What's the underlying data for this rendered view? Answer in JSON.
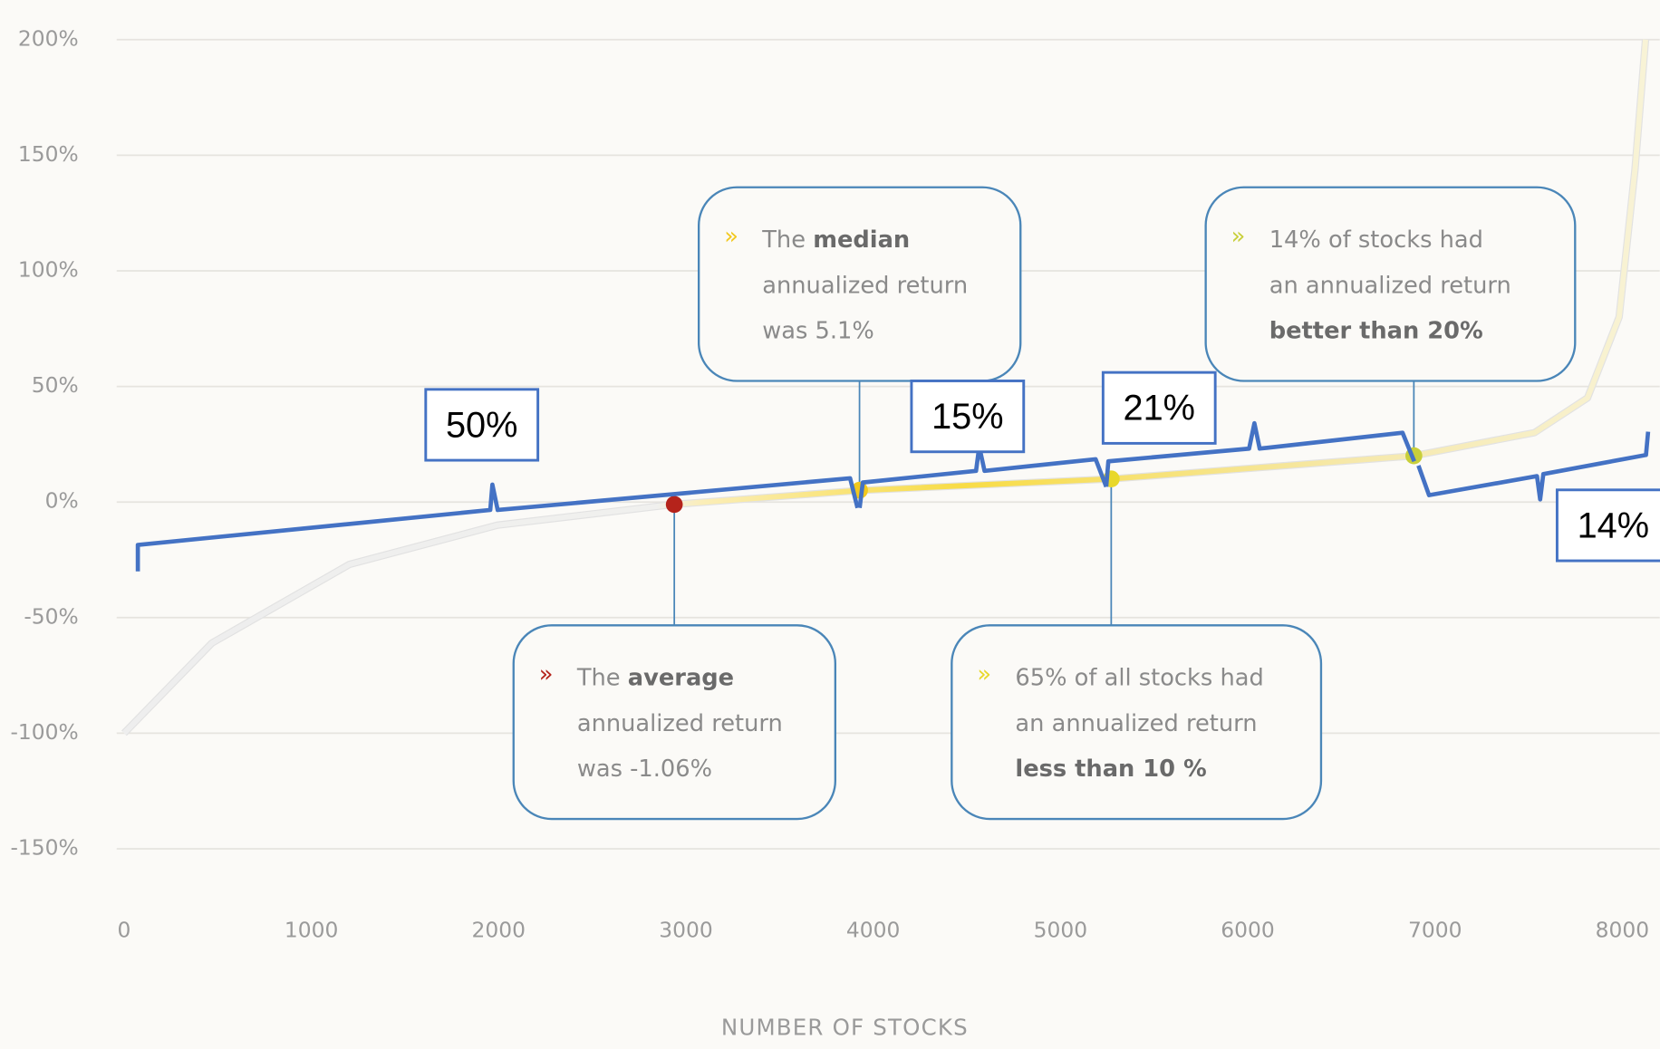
{
  "chart_data": {
    "type": "line",
    "x_label": "NUMBER OF STOCKS",
    "xlim": [
      0,
      8200
    ],
    "xticks": [
      0,
      1000,
      2000,
      3000,
      4000,
      5000,
      6000,
      7000,
      8000
    ],
    "ylim": [
      -165,
      208
    ],
    "yticks": [
      {
        "value": -150,
        "label": "-150%"
      },
      {
        "value": -100,
        "label": "-100%"
      },
      {
        "value": -50,
        "label": "-50%"
      },
      {
        "value": 0,
        "label": "0%"
      },
      {
        "value": 50,
        "label": "50%"
      },
      {
        "value": 100,
        "label": "100%"
      },
      {
        "value": 150,
        "label": "150%"
      },
      {
        "value": 200,
        "label": "200%"
      }
    ],
    "grid": true,
    "series": [
      {
        "color": "#f5e6a0",
        "x": [
          0,
          469,
          1203,
          1994,
          2938,
          3927,
          5271,
          6887,
          7531,
          7814,
          7983,
          8068,
          8124
        ],
        "values": [
          -100,
          -61,
          -27,
          -10,
          -1,
          5,
          10,
          20,
          30,
          45,
          80,
          144,
          200
        ]
      }
    ],
    "highlights": [
      {
        "x": 2938,
        "y": -1.06,
        "color": "#b5231b",
        "bullet": "»",
        "lines": [
          [
            {
              "text": "The"
            },
            {
              "text": "average",
              "bold": true
            }
          ],
          [
            {
              "text": "annualized return"
            }
          ],
          [
            {
              "text": "was -1.06%"
            }
          ]
        ]
      },
      {
        "x": 3927,
        "y": 5.1,
        "color": "#f2c81e",
        "bullet": "»",
        "lines": [
          [
            {
              "text": "The"
            },
            {
              "text": "median",
              "bold": true
            }
          ],
          [
            {
              "text": "annualized return"
            }
          ],
          [
            {
              "text": "was 5.1%"
            }
          ]
        ]
      },
      {
        "x": 5271,
        "y": 10,
        "color": "#e8d82a",
        "bullet": "»",
        "lines": [
          [
            {
              "text": "65% of all stocks had"
            }
          ],
          [
            {
              "text": "an annualized return"
            }
          ],
          [
            {
              "text": "less than 10 %",
              "bold": true
            }
          ]
        ]
      },
      {
        "x": 6887,
        "y": 20,
        "color": "#c8cf3a",
        "bullet": "»",
        "lines": [
          [
            {
              "text": "14% of stocks had"
            }
          ],
          [
            {
              "text": "an annualized return"
            }
          ],
          [
            {
              "text": "better than 20%",
              "bold": true
            }
          ]
        ]
      }
    ],
    "bracket_labels": [
      "50%",
      "15%",
      "21%",
      "14%"
    ]
  }
}
